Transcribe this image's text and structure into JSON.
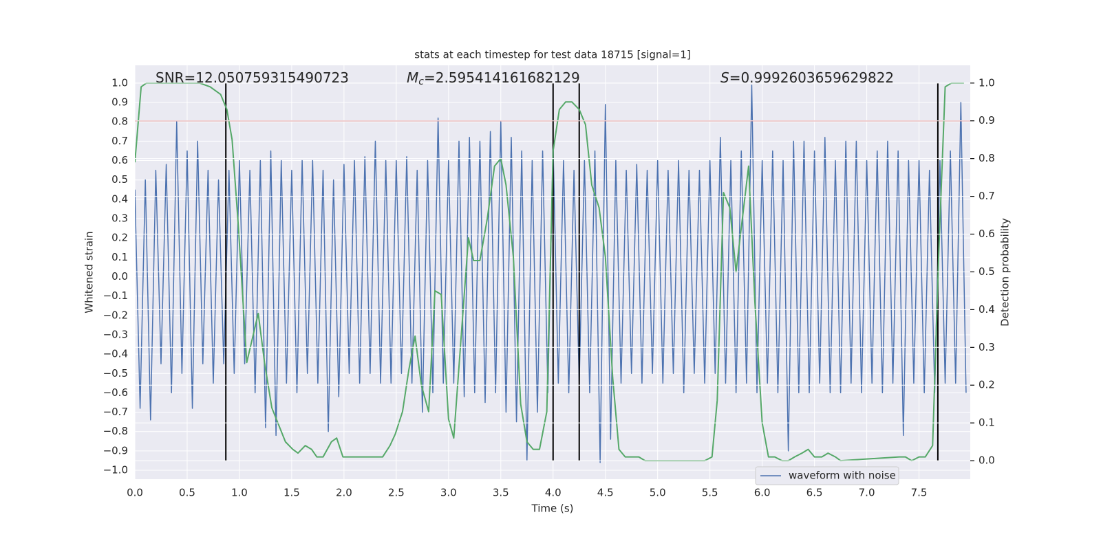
{
  "chart_data": {
    "type": "line",
    "title": "stats at each timestep for test data 18715 [signal=1]",
    "xlabel": "Time (s)",
    "ylabel": "Whitened strain",
    "y2label": "Detection probability",
    "annotations": [
      {
        "text": "SNR=12.050759315490723"
      },
      {
        "symbol": "M",
        "subscript": "c",
        "text": "=2.595414161682129"
      },
      {
        "symbol": "S",
        "text": "=0.9992603659629822"
      }
    ],
    "xlim": [
      0,
      7.99
    ],
    "ylim": [
      -1.046,
      1.092
    ],
    "y2lim": [
      -0.049,
      1.047
    ],
    "xticks": [
      {
        "value": 0,
        "label": "0.0"
      },
      0.5,
      {
        "value": 1,
        "label": "1.0"
      },
      1.5,
      {
        "value": 2,
        "label": "2.0"
      },
      2.5,
      {
        "value": 3,
        "label": "3.0"
      },
      3.5,
      {
        "value": 4,
        "label": "4.0"
      },
      4.5,
      {
        "value": 5,
        "label": "5.0"
      },
      5.5,
      {
        "value": 6,
        "label": "6.0"
      },
      6.5,
      {
        "value": 7,
        "label": "7.0"
      },
      7.5
    ],
    "yticks": [
      {
        "value": -1,
        "label": "−1.0"
      },
      {
        "value": -0.9,
        "label": "−0.9"
      },
      {
        "value": -0.8,
        "label": "−0.8"
      },
      {
        "value": -0.7,
        "label": "−0.7"
      },
      {
        "value": -0.6,
        "label": "−0.6"
      },
      {
        "value": -0.5,
        "label": "−0.5"
      },
      {
        "value": -0.4,
        "label": "−0.4"
      },
      {
        "value": -0.3,
        "label": "−0.3"
      },
      {
        "value": -0.2,
        "label": "−0.2"
      },
      {
        "value": -0.1,
        "label": "−0.1"
      },
      {
        "value": 0,
        "label": "0.0"
      },
      0.1,
      0.2,
      0.3,
      0.4,
      0.5,
      0.6,
      0.7,
      0.8,
      0.9,
      {
        "value": 1,
        "label": "1.0"
      }
    ],
    "y2ticks": [
      {
        "value": 0,
        "label": "0.0"
      },
      0.1,
      0.2,
      0.3,
      0.4,
      0.5,
      0.6,
      0.7,
      0.8,
      0.9,
      {
        "value": 1,
        "label": "1.0"
      }
    ],
    "grid": true,
    "legend": "lower right",
    "threshold": {
      "value": 0.9,
      "axis": "y2",
      "color": "#c03d3e"
    },
    "vlines": {
      "x": [
        0.87,
        4.0,
        4.25,
        7.68
      ],
      "span": [
        0,
        1
      ],
      "axis": "y2",
      "color": "#000000"
    },
    "series": [
      {
        "name": "waveform with noise",
        "color": "#4c72b0",
        "x": [
          0,
          0.05,
          0.1,
          0.15,
          0.2,
          0.25,
          0.3,
          0.35,
          0.4,
          0.45,
          0.5,
          0.55,
          0.6,
          0.65,
          0.7,
          0.75,
          0.8,
          0.85,
          0.9,
          0.95,
          1,
          1.05,
          1.1,
          1.15,
          1.2,
          1.25,
          1.3,
          1.35,
          1.4,
          1.45,
          1.5,
          1.55,
          1.6,
          1.65,
          1.7,
          1.75,
          1.8,
          1.85,
          1.9,
          1.95,
          2,
          2.05,
          2.1,
          2.15,
          2.2,
          2.25,
          2.3,
          2.35,
          2.4,
          2.45,
          2.5,
          2.55,
          2.6,
          2.65,
          2.7,
          2.75,
          2.8,
          2.85,
          2.9,
          2.95,
          3,
          3.05,
          3.1,
          3.15,
          3.2,
          3.25,
          3.3,
          3.35,
          3.4,
          3.45,
          3.5,
          3.55,
          3.6,
          3.65,
          3.7,
          3.75,
          3.8,
          3.85,
          3.9,
          3.95,
          4,
          4.05,
          4.1,
          4.15,
          4.2,
          4.25,
          4.3,
          4.35,
          4.4,
          4.45,
          4.5,
          4.55,
          4.6,
          4.65,
          4.7,
          4.75,
          4.8,
          4.85,
          4.9,
          4.95,
          5,
          5.05,
          5.1,
          5.15,
          5.2,
          5.25,
          5.3,
          5.35,
          5.4,
          5.45,
          5.5,
          5.55,
          5.6,
          5.65,
          5.7,
          5.75,
          5.8,
          5.85,
          5.9,
          5.95,
          6,
          6.05,
          6.1,
          6.15,
          6.2,
          6.25,
          6.3,
          6.35,
          6.4,
          6.45,
          6.5,
          6.55,
          6.6,
          6.65,
          6.7,
          6.75,
          6.8,
          6.85,
          6.9,
          6.95,
          7,
          7.05,
          7.1,
          7.15,
          7.2,
          7.25,
          7.3,
          7.35,
          7.4,
          7.45,
          7.5,
          7.55,
          7.6,
          7.65,
          7.7,
          7.75,
          7.8,
          7.85,
          7.9,
          7.95
        ],
        "values": [
          0.45,
          -0.68,
          0.5,
          -0.74,
          0.55,
          -0.45,
          0.58,
          -0.6,
          0.8,
          -0.5,
          0.65,
          -0.68,
          0.7,
          -0.45,
          0.55,
          -0.55,
          0.5,
          -0.45,
          0.55,
          -0.5,
          0.6,
          -0.45,
          0.55,
          -0.6,
          0.6,
          -0.78,
          0.65,
          -0.82,
          0.6,
          -0.55,
          0.55,
          -0.6,
          0.6,
          -0.5,
          0.6,
          -0.55,
          0.55,
          -0.8,
          0.5,
          -0.62,
          0.58,
          -0.5,
          0.6,
          -0.55,
          0.62,
          -0.5,
          0.7,
          -0.55,
          0.6,
          -0.55,
          0.6,
          -0.5,
          0.62,
          -0.55,
          0.55,
          -0.7,
          0.6,
          -0.6,
          0.82,
          -0.55,
          0.6,
          -0.55,
          0.7,
          -0.62,
          0.72,
          -0.6,
          0.7,
          -0.65,
          0.75,
          -0.6,
          0.8,
          -0.7,
          0.72,
          -0.75,
          0.65,
          -0.95,
          0.6,
          -0.7,
          0.65,
          -0.6,
          0.68,
          -0.55,
          0.6,
          -0.6,
          0.55,
          -0.55,
          0.6,
          -0.6,
          0.65,
          -0.96,
          0.89,
          -0.84,
          0.6,
          -0.55,
          0.55,
          -0.5,
          0.58,
          -0.55,
          0.55,
          -0.5,
          0.6,
          -0.55,
          0.55,
          -0.5,
          0.6,
          -0.6,
          0.55,
          -0.5,
          0.55,
          -0.55,
          0.6,
          -0.5,
          0.72,
          -0.55,
          0.6,
          -0.6,
          0.65,
          -0.55,
          0.99,
          -0.6,
          0.6,
          -0.55,
          0.65,
          -0.6,
          0.6,
          -0.9,
          0.7,
          -0.6,
          0.7,
          -0.6,
          0.65,
          -0.55,
          0.72,
          -0.6,
          0.6,
          -0.6,
          0.7,
          -0.55,
          0.7,
          -0.6,
          0.6,
          -0.55,
          0.65,
          -0.6,
          0.7,
          -0.55,
          0.65,
          -0.82,
          0.6,
          -0.55,
          0.6,
          -0.6,
          0.55,
          -0.6,
          0.6,
          -0.55,
          0.65,
          -0.55,
          0.9,
          -0.6
        ]
      },
      {
        "color": "#55a868",
        "axis": "y2",
        "x": [
          0,
          0.06,
          0.11,
          0.62,
          0.72,
          0.82,
          0.88,
          0.93,
          0.99,
          1.07,
          1.18,
          1.24,
          1.31,
          1.44,
          1.51,
          1.56,
          1.63,
          1.69,
          1.74,
          1.8,
          1.88,
          1.93,
          1.99,
          2.05,
          2.11,
          2.19,
          2.25,
          2.31,
          2.37,
          2.44,
          2.49,
          2.56,
          2.62,
          2.68,
          2.74,
          2.81,
          2.87,
          2.93,
          3,
          3.05,
          3.19,
          3.24,
          3.3,
          3.37,
          3.44,
          3.5,
          3.55,
          3.62,
          3.69,
          3.75,
          3.81,
          3.87,
          3.94,
          4,
          4.06,
          4.12,
          4.18,
          4.25,
          4.31,
          4.37,
          4.44,
          4.5,
          4.57,
          4.63,
          4.69,
          4.75,
          4.82,
          4.88,
          5.45,
          5.52,
          5.57,
          5.63,
          5.69,
          5.75,
          5.81,
          5.87,
          5.93,
          6,
          6.06,
          6.12,
          6.19,
          6.25,
          6.31,
          6.38,
          6.44,
          6.5,
          6.57,
          6.63,
          6.7,
          6.75,
          7.31,
          7.37,
          7.43,
          7.5,
          7.56,
          7.63,
          7.69,
          7.75,
          7.81,
          7.88,
          7.93
        ],
        "values": [
          0.79,
          0.99,
          1.0,
          1.0,
          0.99,
          0.97,
          0.93,
          0.85,
          0.62,
          0.26,
          0.39,
          0.26,
          0.14,
          0.05,
          0.03,
          0.02,
          0.04,
          0.03,
          0.01,
          0.01,
          0.05,
          0.06,
          0.01,
          0.01,
          0.01,
          0.01,
          0.01,
          0.01,
          0.01,
          0.04,
          0.07,
          0.13,
          0.24,
          0.33,
          0.2,
          0.13,
          0.45,
          0.44,
          0.11,
          0.06,
          0.59,
          0.53,
          0.53,
          0.64,
          0.78,
          0.8,
          0.73,
          0.54,
          0.15,
          0.05,
          0.03,
          0.03,
          0.13,
          0.82,
          0.93,
          0.95,
          0.95,
          0.93,
          0.89,
          0.73,
          0.67,
          0.54,
          0.22,
          0.03,
          0.01,
          0.01,
          0.01,
          0.0,
          0.0,
          0.01,
          0.16,
          0.71,
          0.67,
          0.5,
          0.64,
          0.78,
          0.42,
          0.1,
          0.01,
          0.01,
          0.0,
          0.0,
          0.01,
          0.02,
          0.03,
          0.01,
          0.01,
          0.02,
          0.01,
          0.0,
          0.01,
          0.01,
          0.0,
          0.01,
          0.01,
          0.04,
          0.56,
          0.99,
          1.0,
          1.0,
          1.0
        ]
      }
    ]
  }
}
